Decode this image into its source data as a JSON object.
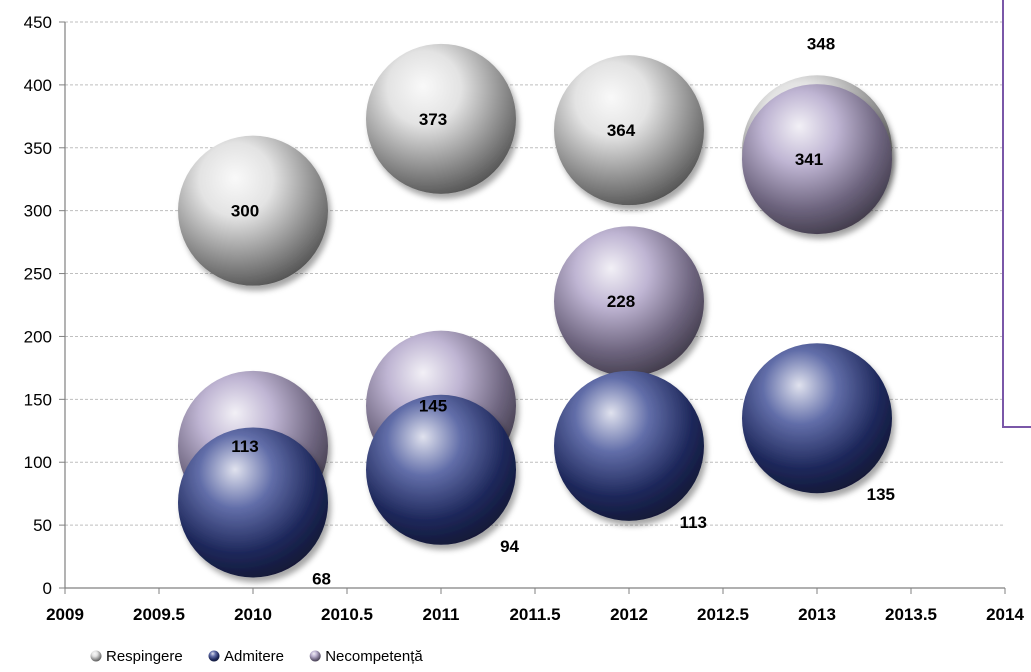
{
  "chart_data": {
    "type": "scatter",
    "subtype": "bubble-3d",
    "title": "",
    "xlabel": "",
    "ylabel": "",
    "xlim": [
      2009,
      2014
    ],
    "ylim": [
      0,
      450
    ],
    "x_ticks": [
      "2009",
      "2009.5",
      "2010",
      "2010.5",
      "2011",
      "2011.5",
      "2012",
      "2012.5",
      "2013",
      "2013.5",
      "2014"
    ],
    "y_ticks": [
      "0",
      "50",
      "100",
      "150",
      "200",
      "250",
      "300",
      "350",
      "400",
      "450"
    ],
    "grid": "horizontal",
    "legend_position": "bottom-left",
    "series": [
      {
        "name": "Respingere",
        "color": "#d9d9d9",
        "points": [
          {
            "x": 2010,
            "y": 300,
            "label": "300"
          },
          {
            "x": 2011,
            "y": 373,
            "label": "373"
          },
          {
            "x": 2012,
            "y": 364,
            "label": "364"
          },
          {
            "x": 2013,
            "y": 348,
            "label": "348"
          }
        ]
      },
      {
        "name": "Admitere",
        "color": "#2e3e8c",
        "points": [
          {
            "x": 2010,
            "y": 68,
            "label": "68"
          },
          {
            "x": 2011,
            "y": 94,
            "label": "94"
          },
          {
            "x": 2012,
            "y": 113,
            "label": "113"
          },
          {
            "x": 2013,
            "y": 135,
            "label": "135"
          }
        ]
      },
      {
        "name": "Necompetență",
        "color": "#a99cc4",
        "points": [
          {
            "x": 2010,
            "y": 113,
            "label": "113"
          },
          {
            "x": 2011,
            "y": 145,
            "label": "145"
          },
          {
            "x": 2012,
            "y": 228,
            "label": "228"
          },
          {
            "x": 2013,
            "y": 341,
            "label": "341"
          }
        ]
      }
    ]
  }
}
